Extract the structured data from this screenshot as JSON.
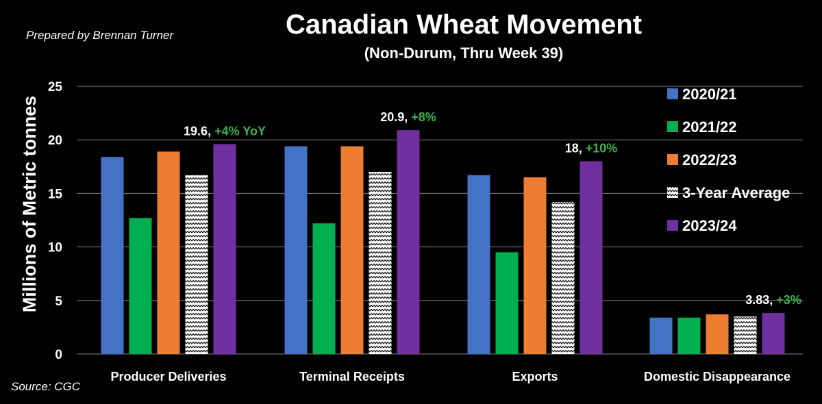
{
  "chart_data": {
    "type": "bar",
    "title": "Canadian Wheat Movement",
    "subtitle": "(Non-Durum, Thru Week 39)",
    "credit": "Prepared by Brennan Turner",
    "source": "Source: CGC",
    "ylabel": "Millions of Metric tonnes",
    "xlabel": "",
    "ylim": [
      0,
      25
    ],
    "yticks": [
      0,
      5,
      10,
      15,
      20,
      25
    ],
    "grid": true,
    "legend_position": "right",
    "categories": [
      "Producer Deliveries",
      "Terminal Receipts",
      "Exports",
      "Domestic Disappearance"
    ],
    "series": [
      {
        "name": "2020/21",
        "color": "#4472c4",
        "pattern": "solid",
        "values": [
          18.4,
          19.4,
          16.7,
          3.4
        ]
      },
      {
        "name": "2021/22",
        "color": "#00b050",
        "pattern": "solid",
        "values": [
          12.7,
          12.2,
          9.5,
          3.4
        ]
      },
      {
        "name": "2022/23",
        "color": "#ed7d31",
        "pattern": "solid",
        "values": [
          18.9,
          19.4,
          16.5,
          3.7
        ]
      },
      {
        "name": "3-Year Average",
        "color": "#ffffff",
        "pattern": "zigzag",
        "values": [
          16.7,
          17.0,
          14.2,
          3.5
        ]
      },
      {
        "name": "2023/24",
        "color": "#7030a0",
        "pattern": "solid",
        "values": [
          19.6,
          20.9,
          18.0,
          3.83
        ]
      }
    ],
    "annotations": [
      {
        "category": "Producer Deliveries",
        "value_text": "19.6, ",
        "change_text": "+4% YoY"
      },
      {
        "category": "Terminal Receipts",
        "value_text": "20.9, ",
        "change_text": "+8%"
      },
      {
        "category": "Exports",
        "value_text": "18, ",
        "change_text": "+10%"
      },
      {
        "category": "Domestic Disappearance",
        "value_text": "3.83, ",
        "change_text": "+3%"
      }
    ],
    "change_color": "#3cb44b"
  }
}
